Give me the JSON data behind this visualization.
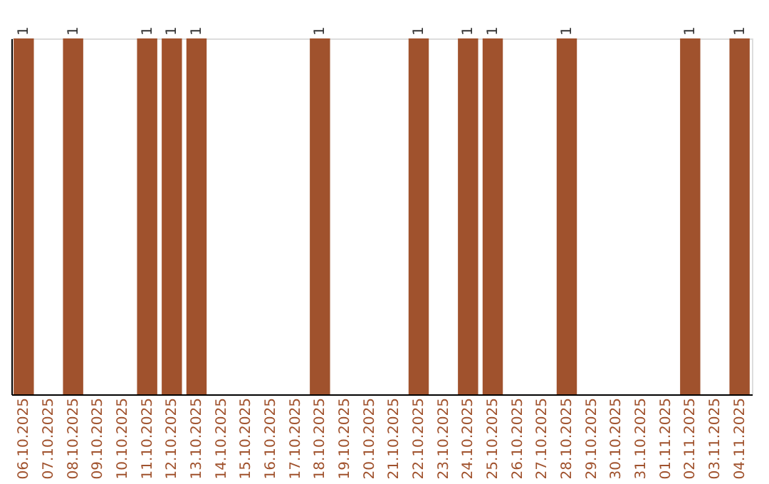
{
  "chart_data": {
    "type": "bar",
    "categories": [
      "06.10.2025",
      "07.10.2025",
      "08.10.2025",
      "09.10.2025",
      "10.10.2025",
      "11.10.2025",
      "12.10.2025",
      "13.10.2025",
      "14.10.2025",
      "15.10.2025",
      "16.10.2025",
      "17.10.2025",
      "18.10.2025",
      "19.10.2025",
      "20.10.2025",
      "21.10.2025",
      "22.10.2025",
      "23.10.2025",
      "24.10.2025",
      "25.10.2025",
      "26.10.2025",
      "27.10.2025",
      "28.10.2025",
      "29.10.2025",
      "30.10.2025",
      "31.10.2025",
      "01.11.2025",
      "02.11.2025",
      "03.11.2025",
      "04.11.2025"
    ],
    "series": [
      {
        "color": "#a0522d",
        "values": [
          1,
          null,
          1,
          null,
          null,
          1,
          1,
          1,
          null,
          null,
          null,
          null,
          1,
          null,
          null,
          null,
          1,
          null,
          1,
          1,
          null,
          null,
          1,
          null,
          null,
          null,
          null,
          1,
          null,
          1
        ]
      }
    ],
    "ylim": [
      0,
      1
    ],
    "data_labels": true,
    "tick_labels": "x",
    "grid": false
  }
}
